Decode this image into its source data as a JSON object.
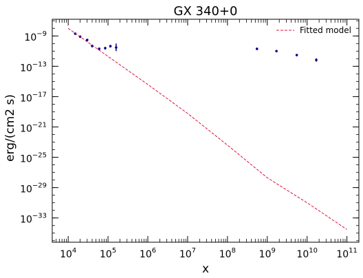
{
  "chart_data": {
    "type": "scatter",
    "title": "GX 340+0",
    "xlabel": "x",
    "ylabel": "erg/(cm2 s)",
    "xscale": "log",
    "yscale": "log",
    "xlim_exp": [
      3.6,
      11.3
    ],
    "ylim_exp": [
      -36.2,
      -6.8
    ],
    "x_ticks": [
      {
        "exp": 4,
        "base": "10",
        "sup": "4"
      },
      {
        "exp": 5,
        "base": "10",
        "sup": "5"
      },
      {
        "exp": 6,
        "base": "10",
        "sup": "6"
      },
      {
        "exp": 7,
        "base": "10",
        "sup": "7"
      },
      {
        "exp": 8,
        "base": "10",
        "sup": "8"
      },
      {
        "exp": 9,
        "base": "10",
        "sup": "9"
      },
      {
        "exp": 10,
        "base": "10",
        "sup": "10"
      },
      {
        "exp": 11,
        "base": "10",
        "sup": "11"
      }
    ],
    "y_ticks": [
      {
        "exp": -9,
        "base": "10",
        "sup": "−9"
      },
      {
        "exp": -13,
        "base": "10",
        "sup": "−13"
      },
      {
        "exp": -17,
        "base": "10",
        "sup": "−17"
      },
      {
        "exp": -21,
        "base": "10",
        "sup": "−21"
      },
      {
        "exp": -25,
        "base": "10",
        "sup": "−25"
      },
      {
        "exp": -29,
        "base": "10",
        "sup": "−29"
      },
      {
        "exp": -33,
        "base": "10",
        "sup": "−33"
      }
    ],
    "legend": {
      "placement": "top-right",
      "label": "Fitted model"
    },
    "series": [
      {
        "kind": "points",
        "color": "#00008b",
        "points": [
          {
            "x": 15000,
            "y": 2e-09,
            "ylo": 1.4e-09,
            "yhi": 2.6e-09
          },
          {
            "x": 20000,
            "y": 8e-10,
            "ylo": 6e-10,
            "yhi": 1e-09
          },
          {
            "x": 30000,
            "y": 3e-10,
            "ylo": 2e-10,
            "yhi": 4e-10
          },
          {
            "x": 40000,
            "y": 5e-11,
            "ylo": 3e-11,
            "yhi": 7e-11
          },
          {
            "x": 60000,
            "y": 2e-11,
            "ylo": 1.3e-11,
            "yhi": 3e-11
          },
          {
            "x": 85000,
            "y": 2.5e-11,
            "ylo": 1.6e-11,
            "yhi": 3.5e-11
          },
          {
            "x": 115000,
            "y": 4.5e-11,
            "ylo": 3e-11,
            "yhi": 6e-11
          },
          {
            "x": 160000,
            "y": 3e-11,
            "ylo": 1e-11,
            "yhi": 1e-10
          },
          {
            "x": 550000000,
            "y": 2e-11,
            "ylo": 1.5e-11,
            "yhi": 2.6e-11
          },
          {
            "x": 1700000000,
            "y": 1e-11,
            "ylo": 7.5e-12,
            "yhi": 1.3e-11
          },
          {
            "x": 5500000000,
            "y": 3e-12,
            "ylo": 2.2e-12,
            "yhi": 4e-12
          },
          {
            "x": 17000000000,
            "y": 7e-13,
            "ylo": 4e-13,
            "yhi": 1.1e-12
          }
        ]
      },
      {
        "kind": "line",
        "name": "Fitted model",
        "color": "#dc143c",
        "dash": true,
        "points": [
          {
            "x": 10000,
            "y": 1e-08
          },
          {
            "x": 100000,
            "y": 2e-12
          },
          {
            "x": 1000000,
            "y": 4e-16
          },
          {
            "x": 10000000,
            "y": 6e-20
          },
          {
            "x": 100000000,
            "y": 4e-24
          },
          {
            "x": 1000000000,
            "y": 2e-28
          },
          {
            "x": 10000000000,
            "y": 1e-31
          },
          {
            "x": 100000000000,
            "y": 3e-35
          }
        ]
      }
    ]
  }
}
